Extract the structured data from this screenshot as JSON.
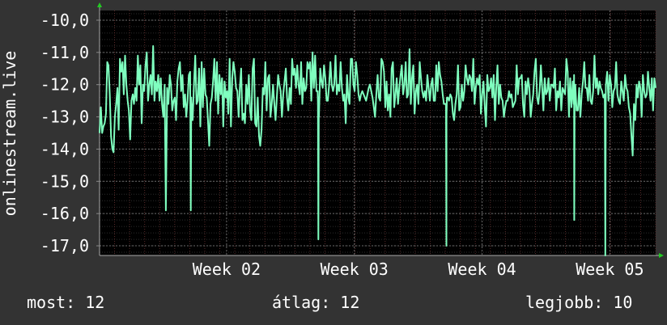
{
  "chart_data": {
    "type": "line",
    "ylabel": "onlinestream.live",
    "ylim": [
      -17.3,
      -9.7
    ],
    "y_ticks": [
      -10,
      -11,
      -12,
      -13,
      -14,
      -15,
      -16,
      -17
    ],
    "y_tick_labels": [
      "-10,0",
      "-11,0",
      "-12,0",
      "-13,0",
      "-14,0",
      "-15,0",
      "-16,0",
      "-17,0"
    ],
    "x_range": [
      0,
      37
    ],
    "x_ticks": [
      {
        "at": 8.45,
        "label": "Week 02"
      },
      {
        "at": 16.95,
        "label": "Week 03"
      },
      {
        "at": 25.45,
        "label": "Week 04"
      },
      {
        "at": 33.95,
        "label": "Week 05"
      }
    ],
    "grid": true,
    "series": [
      {
        "color": "#7fffbf",
        "values": [
          -13.5,
          -12.7,
          -13.5,
          -13.3,
          -13.2,
          -12.9,
          -11.3,
          -11.4,
          -12.3,
          -13.6,
          -14.0,
          -14.1,
          -13.0,
          -12.6,
          -12.1,
          -13.4,
          -11.2,
          -11.6,
          -11.3,
          -12.3,
          -11.1,
          -12.0,
          -12.5,
          -12.8,
          -13.7,
          -12.5,
          -12.3,
          -12.6,
          -12.1,
          -12.5,
          -11.1,
          -12.0,
          -11.4,
          -13.2,
          -12.0,
          -12.2,
          -11.4,
          -11.0,
          -12.5,
          -12.0,
          -11.7,
          -12.3,
          -10.8,
          -12.5,
          -11.9,
          -12.2,
          -11.7,
          -12.5,
          -11.8,
          -12.6,
          -13.0,
          -12.0,
          -15.9,
          -12.1,
          -12.6,
          -11.7,
          -12.0,
          -12.8,
          -12.5,
          -12.4,
          -13.1,
          -11.9,
          -11.5,
          -11.3,
          -12.2,
          -11.7,
          -12.7,
          -12.3,
          -13.0,
          -12.5,
          -11.7,
          -11.6,
          -12.5,
          -13.1,
          -12.0,
          -11.1,
          -12.6,
          -12.5,
          -11.5,
          -13.3,
          -11.3,
          -12.7,
          -11.5,
          -12.3,
          -12.4,
          -13.1,
          -13.9,
          -12.6,
          -12.4,
          -11.9,
          -11.2,
          -12.5,
          -11.3,
          -12.9,
          -11.7,
          -12.3,
          -11.8,
          -13.3,
          -11.9,
          -12.4,
          -12.2,
          -12.9,
          -11.2,
          -13.3,
          -11.8,
          -11.3,
          -11.6,
          -12.1,
          -12.2,
          -13.0,
          -12.1,
          -11.5,
          -13.1,
          -12.9,
          -13.2,
          -12.0,
          -12.6,
          -11.7,
          -12.8,
          -13.1,
          -11.5,
          -11.2,
          -13.2,
          -13.3,
          -12.4,
          -13.6,
          -13.9,
          -13.4,
          -12.1,
          -12.3,
          -11.3,
          -12.8,
          -11.8,
          -11.7,
          -13.0,
          -12.6,
          -12.0,
          -12.6,
          -13.1,
          -12.4,
          -11.7,
          -12.0,
          -12.2,
          -13.0,
          -12.3,
          -11.9,
          -11.5,
          -12.4,
          -12.8,
          -12.1,
          -12.6,
          -11.2,
          -11.7,
          -11.5,
          -12.1,
          -11.4,
          -12.0,
          -12.3,
          -11.3,
          -12.6,
          -11.8,
          -12.2,
          -12.1,
          -11.3,
          -11.5,
          -11.3,
          -12.5,
          -11.0,
          -12.1,
          -11.1,
          -12.2,
          -12.2,
          -13.0,
          -11.5,
          -11.9,
          -12.1,
          -11.4,
          -11.8,
          -12.5,
          -12.5,
          -12.0,
          -11.3,
          -12.0,
          -12.2,
          -12.0,
          -11.1,
          -12.3,
          -12.0,
          -12.2,
          -11.3,
          -12.1,
          -12.5,
          -12.3,
          -13.2,
          -11.7,
          -12.4,
          -12.6,
          -11.2,
          -11.2,
          -12.0,
          -12.2,
          -11.3,
          -11.7,
          -12.3,
          -12.5,
          -12.3,
          -12.2,
          -12.3,
          -12.4,
          -12.5,
          -12.3,
          -12.1,
          -12.0,
          -12.2,
          -12.4,
          -12.7,
          -13.0,
          -12.3,
          -11.7,
          -12.4,
          -12.5,
          -11.2,
          -11.3,
          -11.6,
          -12.7,
          -11.9,
          -12.8,
          -12.3,
          -13.0,
          -11.5,
          -11.3,
          -12.7,
          -12.3,
          -11.8,
          -12.6,
          -12.1,
          -11.7,
          -11.4,
          -12.3,
          -12.0,
          -11.3,
          -12.4,
          -12.3,
          -10.9,
          -12.6,
          -11.8,
          -11.4,
          -12.9,
          -12.2,
          -12.0,
          -12.6,
          -11.3,
          -11.8,
          -12.2,
          -12.4,
          -12.2,
          -12.5,
          -11.7,
          -12.1,
          -12.5,
          -12.0,
          -11.8,
          -12.5,
          -12.5,
          -11.4,
          -12.2,
          -11.3,
          -11.7,
          -11.9,
          -12.3,
          -12.6,
          -12.6,
          -13.0,
          -12.4,
          -12.5,
          -12.3,
          -12.4,
          -12.9,
          -13.1,
          -12.6,
          -12.3,
          -11.4,
          -12.8,
          -12.7,
          -12.0,
          -12.5,
          -12.2,
          -11.4,
          -11.8,
          -12.0,
          -11.7,
          -11.8,
          -12.2,
          -11.2,
          -12.6,
          -12.1,
          -11.8,
          -12.0,
          -11.7,
          -12.9,
          -12.3,
          -11.9,
          -12.7,
          -13.3,
          -11.7,
          -12.2,
          -12.1,
          -11.8,
          -12.4,
          -11.7,
          -13.1,
          -12.1,
          -11.4,
          -12.6,
          -12.0,
          -12.4,
          -12.5,
          -13.0,
          -12.7,
          -12.5,
          -12.5,
          -12.2,
          -12.4,
          -12.3,
          -12.7,
          -12.6,
          -12.5,
          -11.4,
          -12.3,
          -11.8,
          -11.8,
          -11.7,
          -12.6,
          -13.0,
          -11.9,
          -12.3,
          -11.8,
          -12.1,
          -13.0,
          -12.6,
          -12.3,
          -11.6,
          -11.2,
          -12.4,
          -12.6,
          -12.2,
          -11.4,
          -12.1,
          -12.8,
          -11.8,
          -12.3,
          -12.2,
          -11.8,
          -12.5,
          -12.0,
          -12.0,
          -12.1,
          -11.5,
          -12.8,
          -12.2,
          -12.4,
          -11.9,
          -12.8,
          -12.1,
          -12.2,
          -12.3,
          -11.2,
          -11.6,
          -13.0,
          -11.8,
          -12.7,
          -11.9,
          -11.7,
          -12.0,
          -12.8,
          -12.8,
          -12.1,
          -13.0,
          -12.3,
          -11.9,
          -11.3,
          -12.1,
          -12.1,
          -12.5,
          -11.7,
          -12.5,
          -12.6,
          -12.2,
          -11.1,
          -12.1,
          -11.8,
          -12.3,
          -11.9,
          -12.1,
          -12.2,
          -12.4,
          -12.3,
          -12.0,
          -11.6,
          -12.5,
          -11.7,
          -12.0,
          -12.7,
          -12.2,
          -12.1,
          -11.3,
          -12.3,
          -12.5,
          -12.6,
          -11.9,
          -12.2,
          -12.5,
          -11.7,
          -12.1,
          -12.2,
          -12.7,
          -12.9,
          -13.6,
          -14.2,
          -12.6,
          -13.1,
          -12.0,
          -12.4,
          -11.9,
          -12.1,
          -13.0,
          -11.7,
          -12.2,
          -12.4,
          -12.3,
          -11.6,
          -12.1,
          -12.5,
          -11.8,
          -12.8,
          -11.8,
          -12.1
        ]
      }
    ],
    "spikes": [
      {
        "x": 6.07,
        "y": -15.9
      },
      {
        "x": 14.56,
        "y": -16.8
      },
      {
        "x": 23.08,
        "y": -17.0
      },
      {
        "x": 31.58,
        "y": -16.2
      },
      {
        "x": 33.65,
        "y": -17.3
      }
    ],
    "colors": {
      "background": "#333333",
      "plot_bg": "#000000",
      "line": "#7fffbf",
      "grid_major": "#4a4a4a",
      "grid_minor_red": "#5a2a2a",
      "arrow": "#22cc22",
      "text": "#ffffff"
    }
  },
  "footer": {
    "current": "most: 12",
    "average": "átlag: 12",
    "best": "legjobb: 10"
  }
}
